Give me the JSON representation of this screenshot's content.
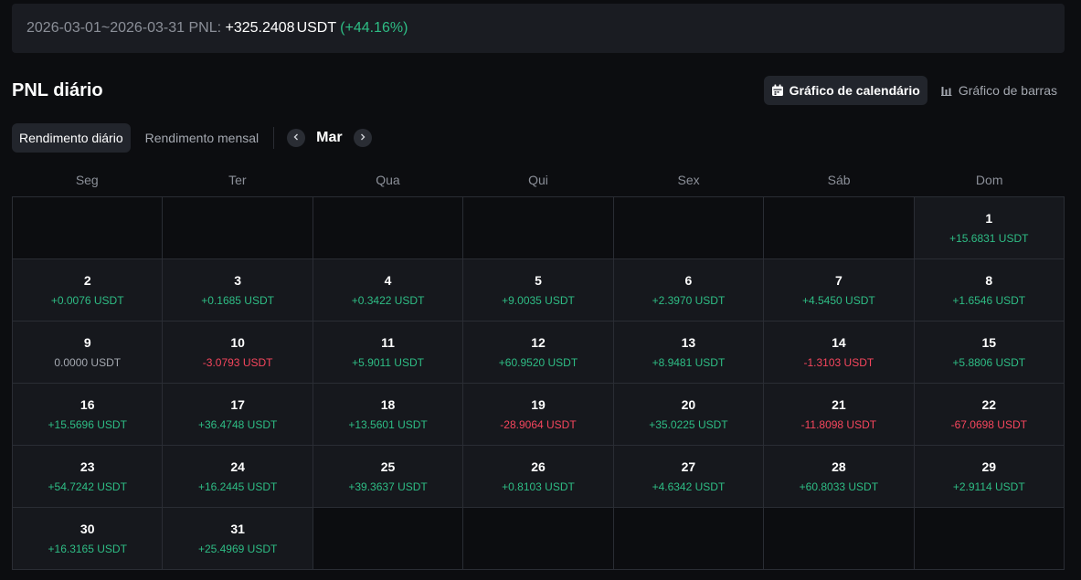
{
  "summary": {
    "range_label": "2026-03-01~2026-03-31 PNL: ",
    "amount": "+325.2408",
    "unit": "USDT",
    "percent": "(+44.16%)"
  },
  "title": "PNL diário",
  "view_toggle": {
    "calendar_label": "Gráfico de calendário",
    "bars_label": "Gráfico de barras",
    "calendar_icon": "calendar-icon",
    "bars_icon": "bar-chart-icon"
  },
  "tabs": {
    "daily": "Rendimento diário",
    "monthly": "Rendimento mensal"
  },
  "month_nav": {
    "label": "Mar",
    "prev_icon": "chevron-left-icon",
    "next_icon": "chevron-right-icon"
  },
  "weekdays": [
    "Seg",
    "Ter",
    "Qua",
    "Qui",
    "Sex",
    "Sáb",
    "Dom"
  ],
  "first_weekday_offset": 6,
  "days": [
    {
      "day": "1",
      "pnl": "+15.6831 USDT",
      "sign": "pos"
    },
    {
      "day": "2",
      "pnl": "+0.0076 USDT",
      "sign": "pos"
    },
    {
      "day": "3",
      "pnl": "+0.1685 USDT",
      "sign": "pos"
    },
    {
      "day": "4",
      "pnl": "+0.3422 USDT",
      "sign": "pos"
    },
    {
      "day": "5",
      "pnl": "+9.0035 USDT",
      "sign": "pos"
    },
    {
      "day": "6",
      "pnl": "+2.3970 USDT",
      "sign": "pos"
    },
    {
      "day": "7",
      "pnl": "+4.5450 USDT",
      "sign": "pos"
    },
    {
      "day": "8",
      "pnl": "+1.6546 USDT",
      "sign": "pos"
    },
    {
      "day": "9",
      "pnl": "0.0000 USDT",
      "sign": "zero"
    },
    {
      "day": "10",
      "pnl": "-3.0793 USDT",
      "sign": "neg"
    },
    {
      "day": "11",
      "pnl": "+5.9011 USDT",
      "sign": "pos"
    },
    {
      "day": "12",
      "pnl": "+60.9520 USDT",
      "sign": "pos"
    },
    {
      "day": "13",
      "pnl": "+8.9481 USDT",
      "sign": "pos"
    },
    {
      "day": "14",
      "pnl": "-1.3103 USDT",
      "sign": "neg"
    },
    {
      "day": "15",
      "pnl": "+5.8806 USDT",
      "sign": "pos"
    },
    {
      "day": "16",
      "pnl": "+15.5696 USDT",
      "sign": "pos"
    },
    {
      "day": "17",
      "pnl": "+36.4748 USDT",
      "sign": "pos"
    },
    {
      "day": "18",
      "pnl": "+13.5601 USDT",
      "sign": "pos"
    },
    {
      "day": "19",
      "pnl": "-28.9064 USDT",
      "sign": "neg"
    },
    {
      "day": "20",
      "pnl": "+35.0225 USDT",
      "sign": "pos"
    },
    {
      "day": "21",
      "pnl": "-11.8098 USDT",
      "sign": "neg"
    },
    {
      "day": "22",
      "pnl": "-67.0698 USDT",
      "sign": "neg"
    },
    {
      "day": "23",
      "pnl": "+54.7242 USDT",
      "sign": "pos"
    },
    {
      "day": "24",
      "pnl": "+16.2445 USDT",
      "sign": "pos"
    },
    {
      "day": "25",
      "pnl": "+39.3637 USDT",
      "sign": "pos"
    },
    {
      "day": "26",
      "pnl": "+0.8103 USDT",
      "sign": "pos"
    },
    {
      "day": "27",
      "pnl": "+4.6342 USDT",
      "sign": "pos"
    },
    {
      "day": "28",
      "pnl": "+60.8033 USDT",
      "sign": "pos"
    },
    {
      "day": "29",
      "pnl": "+2.9114 USDT",
      "sign": "pos"
    },
    {
      "day": "30",
      "pnl": "+16.3165 USDT",
      "sign": "pos"
    },
    {
      "day": "31",
      "pnl": "+25.4969 USDT",
      "sign": "pos"
    }
  ],
  "colors": {
    "positive": "#2ebd85",
    "negative": "#f6465d",
    "neutral": "#a4a8b0",
    "background": "#0c0d10",
    "cell": "#16181d"
  }
}
